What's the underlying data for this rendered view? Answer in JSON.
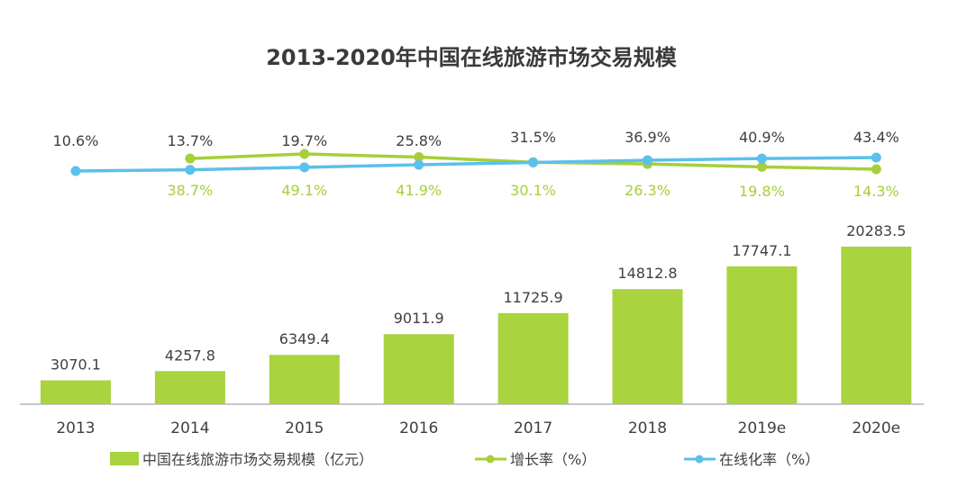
{
  "chart_data": {
    "type": "bar",
    "title": "2013-2020年中国在线旅游市场交易规模",
    "categories": [
      "2013",
      "2014",
      "2015",
      "2016",
      "2017",
      "2018",
      "2019e",
      "2020e"
    ],
    "series": [
      {
        "name": "中国在线旅游市场交易规模（亿元）",
        "type": "bar",
        "color": "#a9d33f",
        "values": [
          3070.1,
          4257.8,
          6349.4,
          9011.9,
          11725.9,
          14812.8,
          17747.1,
          20283.5
        ],
        "labels": [
          "3070.1",
          "4257.8",
          "6349.4",
          "9011.9",
          "11725.9",
          "14812.8",
          "17747.1",
          "20283.5"
        ]
      },
      {
        "name": "增长率（%）",
        "type": "line",
        "color": "#a6cf3a",
        "values": [
          null,
          38.7,
          49.1,
          41.9,
          30.1,
          26.3,
          19.8,
          14.3
        ],
        "labels": [
          null,
          "38.7%",
          "49.1%",
          "41.9%",
          "30.1%",
          "26.3%",
          "19.8%",
          "14.3%"
        ]
      },
      {
        "name": "在线化率（%）",
        "type": "line",
        "color": "#5bc0eb",
        "values": [
          10.6,
          13.7,
          19.7,
          25.8,
          31.5,
          36.9,
          40.9,
          43.4
        ],
        "labels": [
          "10.6%",
          "13.7%",
          "19.7%",
          "25.8%",
          "31.5%",
          "36.9%",
          "40.9%",
          "43.4%"
        ]
      }
    ],
    "xlabel": "",
    "ylabel": "",
    "grid": false,
    "legend_position": "bottom"
  },
  "legend": [
    {
      "label": "中国在线旅游市场交易规模（亿元）",
      "icon": "bar-swatch"
    },
    {
      "label": "增长率（%）",
      "icon": "line-marker"
    },
    {
      "label": "在线化率（%）",
      "icon": "line-marker"
    }
  ]
}
